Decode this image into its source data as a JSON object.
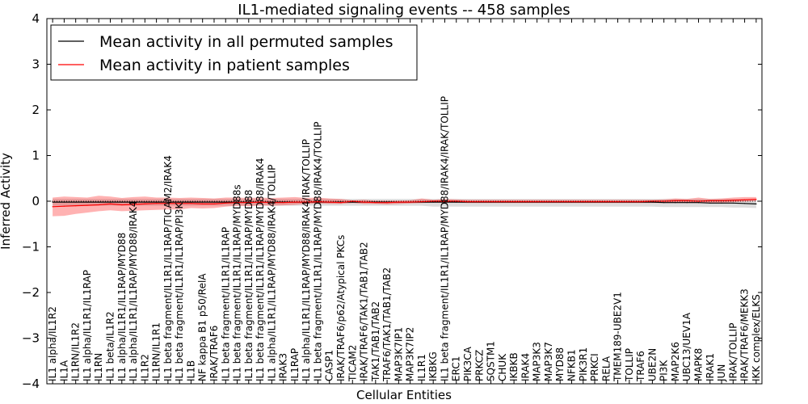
{
  "chart_data": {
    "type": "line",
    "title": "IL1-mediated signaling events -- 458 samples",
    "xlabel": "Cellular Entities",
    "ylabel": "Inferred Activity",
    "ylim": [
      -4,
      4
    ],
    "yticks": [
      "4",
      "3",
      "2",
      "1",
      "0",
      "−1",
      "−2",
      "−3",
      "−4"
    ],
    "grid": false,
    "legend_position": "top-left",
    "legend": [
      {
        "label": "Mean activity in all permuted samples",
        "color": "#000000"
      },
      {
        "label": "Mean activity in patient samples",
        "color": "#ff0000"
      }
    ],
    "categories": [
      "IL1 alpha/IL1R2",
      "IL1A",
      "IL1RN/IL1R2",
      "IL1 alpha/IL1R1/IL1RAP",
      "IL1RN",
      "IL1 beta/IL1R2",
      "IL1 alpha/IL1R1/IL1RAP/MYD88",
      "IL1 alpha/IL1R1/IL1RAP/MYD88/IRAK4",
      "IL1R2",
      "IL1RN/IL1R1",
      "IL1 beta fragment/IL1R1/IL1RAP/TICAM2/IRAK4",
      "IL1 beta fragment/IL1R1/IL1RAP/PI3K",
      "IL1B",
      "NF kappa B1 p50/RelA",
      "IRAK/TRAF6",
      "IL1 beta fragment/IL1R1/IL1RAP",
      "IL1 beta fragment/IL1R1/IL1RAP/MYD88s",
      "IL1 beta fragment/IL1R1/IL1RAP/MYD88",
      "IL1 beta fragment/IL1R1/IL1RAP/MYD88/IRAK4",
      "IL1 alpha/IL1R1/IL1RAP/MYD88/IRAK4/TOLLIP",
      "IRAK3",
      "IL1RAP",
      "IL1 alpha/IL1R1/IL1RAP/MYD88/IRAK4/IRAK/TOLLIP",
      "IL1 beta fragment/IL1R1/IL1RAP/MYD88/IRAK4/TOLLIP",
      "CASP1",
      "IRAK/TRAF6/p62/Atypical PKCs",
      "TICAM2",
      "IRAK/TRAF6/TAK1/TAB1/TAB2",
      "TAK1/TAB1/TAB2",
      "TRAF6/TAK1/TAB1/TAB2",
      "MAP3K7IP1",
      "MAP3K7IP2",
      "IL1R1",
      "IKBKG",
      "IL1 beta fragment/IL1R1/IL1RAP/MYD88/IRAK4/IRAK/TOLLIP",
      "ERC1",
      "PIK3CA",
      "PRKCZ",
      "SQSTM1",
      "CHUK",
      "IKBKB",
      "IRAK4",
      "MAP3K3",
      "MAP3K7",
      "MYD88",
      "NFKB1",
      "PIK3R1",
      "PRKCI",
      "RELA",
      "TMEM189-UBE2V1",
      "TOLLIP",
      "TRAF6",
      "UBE2N",
      "PI3K",
      "MAP2K6",
      "UBC13/UEV1A",
      "MAPK8",
      "IRAK1",
      "JUN",
      "IRAK/TOLLIP",
      "IRAK/TRAF6/MEKK3",
      "IKK complex/ELKS"
    ],
    "series": [
      {
        "name": "Mean activity in all permuted samples",
        "color": "#000000",
        "values": [
          -0.02,
          -0.02,
          -0.02,
          -0.02,
          -0.02,
          -0.02,
          -0.02,
          -0.02,
          -0.02,
          -0.02,
          -0.02,
          -0.02,
          -0.02,
          -0.02,
          -0.02,
          -0.02,
          -0.02,
          -0.02,
          -0.02,
          -0.02,
          -0.02,
          -0.02,
          -0.02,
          -0.02,
          -0.02,
          -0.02,
          -0.02,
          -0.02,
          -0.02,
          -0.02,
          -0.02,
          -0.02,
          -0.02,
          -0.02,
          -0.02,
          -0.02,
          -0.02,
          -0.02,
          -0.02,
          -0.02,
          -0.02,
          -0.02,
          -0.02,
          -0.02,
          -0.02,
          -0.02,
          -0.02,
          -0.02,
          -0.02,
          -0.02,
          -0.02,
          -0.02,
          -0.02,
          -0.03,
          -0.03,
          -0.03,
          -0.03,
          -0.04,
          -0.04,
          -0.04,
          -0.05,
          -0.06
        ],
        "band_low": [
          -0.1,
          -0.1,
          -0.1,
          -0.1,
          -0.1,
          -0.1,
          -0.1,
          -0.1,
          -0.1,
          -0.1,
          -0.1,
          -0.1,
          -0.1,
          -0.1,
          -0.1,
          -0.1,
          -0.1,
          -0.1,
          -0.1,
          -0.1,
          -0.1,
          -0.1,
          -0.1,
          -0.1,
          -0.1,
          -0.1,
          -0.1,
          -0.1,
          -0.1,
          -0.1,
          -0.1,
          -0.1,
          -0.1,
          -0.12,
          -0.12,
          -0.12,
          -0.12,
          -0.12,
          -0.12,
          -0.12,
          -0.12,
          -0.12,
          -0.12,
          -0.12,
          -0.12,
          -0.12,
          -0.12,
          -0.12,
          -0.12,
          -0.12,
          -0.12,
          -0.12,
          -0.12,
          -0.13,
          -0.13,
          -0.13,
          -0.13,
          -0.13,
          -0.13,
          -0.14,
          -0.14,
          -0.15
        ],
        "band_high": [
          0.05,
          0.05,
          0.05,
          0.05,
          0.05,
          0.05,
          0.05,
          0.05,
          0.05,
          0.05,
          0.05,
          0.05,
          0.05,
          0.05,
          0.05,
          0.05,
          0.05,
          0.05,
          0.05,
          0.05,
          0.05,
          0.05,
          0.05,
          0.05,
          0.05,
          0.05,
          0.05,
          0.05,
          0.05,
          0.05,
          0.05,
          0.05,
          0.05,
          0.05,
          0.05,
          0.05,
          0.05,
          0.05,
          0.05,
          0.05,
          0.05,
          0.05,
          0.05,
          0.05,
          0.05,
          0.05,
          0.05,
          0.05,
          0.05,
          0.05,
          0.05,
          0.05,
          0.05,
          0.05,
          0.05,
          0.05,
          0.05,
          0.05,
          0.05,
          0.05,
          0.05,
          0.05
        ]
      },
      {
        "name": "Mean activity in patient samples",
        "color": "#ff0000",
        "values": [
          -0.12,
          -0.11,
          -0.1,
          -0.09,
          -0.08,
          -0.06,
          -0.08,
          -0.07,
          -0.06,
          -0.05,
          -0.05,
          -0.05,
          -0.05,
          -0.06,
          -0.06,
          -0.04,
          -0.03,
          -0.03,
          -0.02,
          -0.03,
          -0.03,
          -0.02,
          -0.02,
          -0.01,
          -0.02,
          -0.03,
          0,
          -0.02,
          -0.03,
          -0.03,
          -0.02,
          -0.02,
          -0.01,
          0,
          0,
          0,
          -0.01,
          -0.01,
          -0.01,
          -0.01,
          -0.01,
          -0.01,
          -0.01,
          -0.01,
          -0.01,
          -0.01,
          -0.01,
          -0.01,
          -0.01,
          -0.01,
          -0.01,
          -0.01,
          0,
          0,
          0.01,
          0.01,
          0,
          0.01,
          0.01,
          0.02,
          0.03,
          0.04
        ],
        "band_low": [
          -0.33,
          -0.32,
          -0.28,
          -0.25,
          -0.22,
          -0.2,
          -0.22,
          -0.21,
          -0.2,
          -0.19,
          -0.18,
          -0.18,
          -0.15,
          -0.16,
          -0.15,
          -0.12,
          -0.1,
          -0.11,
          -0.09,
          -0.1,
          -0.09,
          -0.08,
          -0.06,
          -0.05,
          -0.06,
          -0.06,
          -0.04,
          -0.06,
          -0.06,
          -0.07,
          -0.06,
          -0.05,
          -0.04,
          -0.03,
          -0.03,
          -0.03,
          -0.04,
          -0.04,
          -0.04,
          -0.04,
          -0.04,
          -0.04,
          -0.04,
          -0.04,
          -0.04,
          -0.04,
          -0.04,
          -0.04,
          -0.04,
          -0.04,
          -0.04,
          -0.04,
          -0.04,
          -0.04,
          -0.04,
          -0.04,
          -0.04,
          -0.03,
          -0.03,
          -0.02,
          -0.01,
          0
        ],
        "band_high": [
          0.08,
          0.1,
          0.09,
          0.08,
          0.12,
          0.1,
          0.07,
          0.09,
          0.1,
          0.08,
          0.08,
          0.07,
          0.08,
          0.07,
          0.06,
          0.08,
          0.08,
          0.07,
          0.08,
          0.07,
          0.08,
          0.09,
          0.07,
          0.08,
          0.06,
          0.05,
          0.02,
          0.03,
          0.01,
          0.01,
          0.01,
          0.02,
          0.06,
          0.03,
          0.05,
          0.04,
          0.03,
          0.03,
          0.03,
          0.03,
          0.03,
          0.03,
          0.03,
          0.03,
          0.03,
          0.03,
          0.03,
          0.03,
          0.03,
          0.03,
          0.03,
          0.03,
          0.03,
          0.04,
          0.06,
          0.05,
          0.08,
          0.05,
          0.06,
          0.08,
          0.09,
          0.09
        ]
      }
    ]
  }
}
